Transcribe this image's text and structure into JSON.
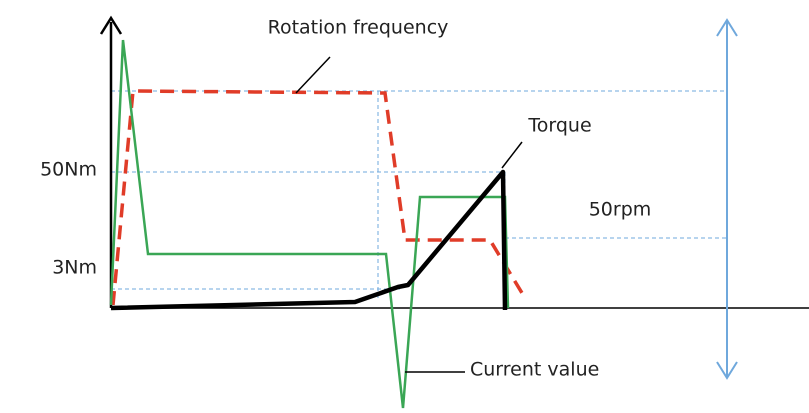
{
  "labels": {
    "rotation": "Rotation frequency",
    "torque": "Torque",
    "torque_high": "50Nm",
    "rpm": "50rpm",
    "torque_low": "3Nm",
    "current": "Current value"
  }
}
